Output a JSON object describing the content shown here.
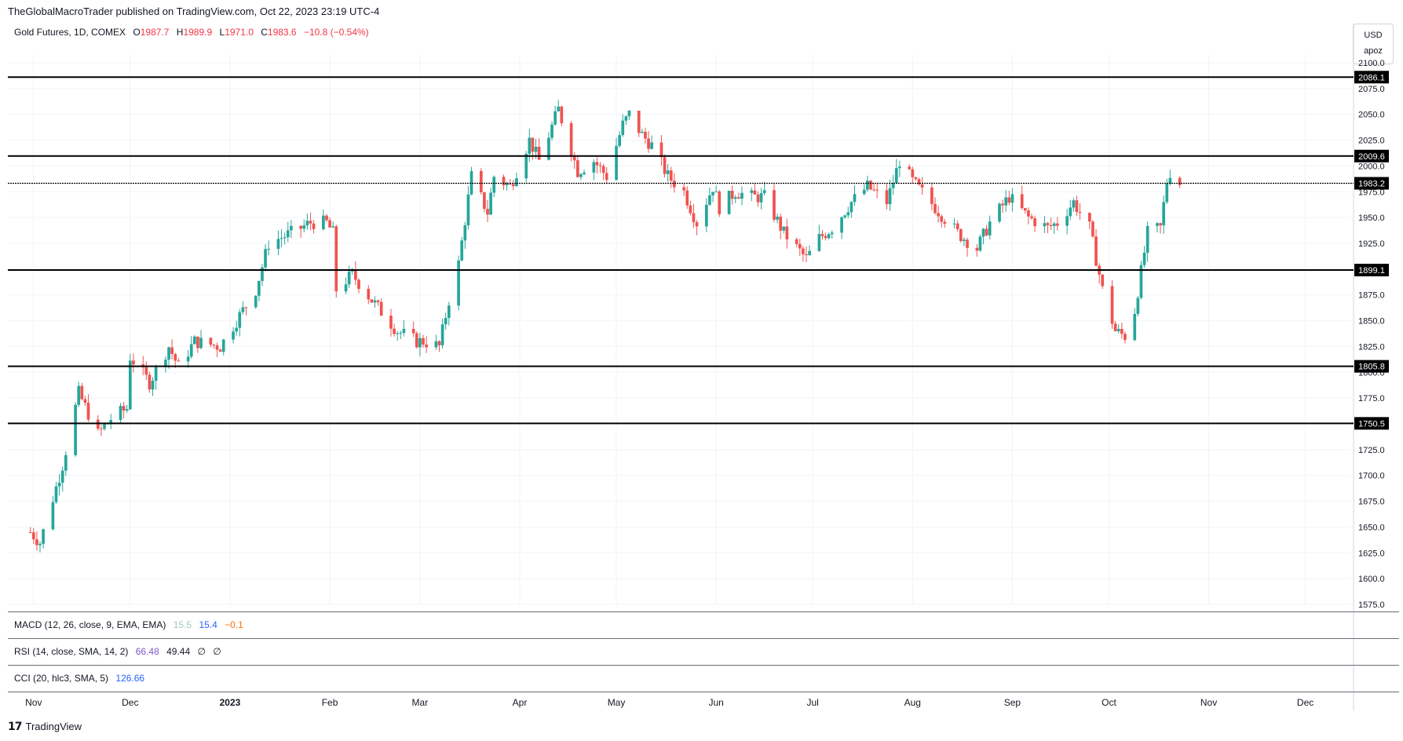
{
  "header": {
    "publisher": "TheGlobalMacroTrader published on TradingView.com, Oct 22, 2023 23:19 UTC-4"
  },
  "legend": {
    "symbol": "Gold Futures, 1D, COMEX",
    "o_label": "O",
    "o": "1987.7",
    "h_label": "H",
    "h": "1989.9",
    "l_label": "L",
    "l": "1971.0",
    "c_label": "C",
    "c": "1983.6",
    "change": "−10.8 (−0.54%)"
  },
  "scale_box": {
    "currency": "USD",
    "unit": "apoz"
  },
  "indicators": {
    "macd": {
      "label": "MACD (12, 26, close, 9, EMA, EMA)",
      "v1": "15.5",
      "v2": "15.4",
      "v3": "−0.1"
    },
    "rsi": {
      "label": "RSI (14, close, SMA, 14, 2)",
      "v1": "66.48",
      "v2": "49.44",
      "v3": "∅",
      "v4": "∅"
    },
    "cci": {
      "label": "CCI (20, hlc3, SMA, 5)",
      "v1": "126.66"
    }
  },
  "footer": {
    "brand": "TradingView"
  },
  "colors": {
    "up": "#26a69a",
    "down": "#ef5350",
    "level_line": "#000000",
    "grid": "#f0f3fa"
  },
  "chart_data": {
    "type": "candlestick",
    "title": "Gold Futures, 1D, COMEX",
    "ylim": [
      1575,
      2100
    ],
    "y_ticks": [
      2100,
      2075,
      2050,
      2025,
      2000,
      1975,
      1950,
      1925,
      1900,
      1875,
      1850,
      1825,
      1800,
      1775,
      1750,
      1725,
      1700,
      1675,
      1650,
      1625,
      1600,
      1575
    ],
    "y_tick_labels": [
      "2100.0",
      "2075.0",
      "2050.0",
      "2025.0",
      "2000.0",
      "1975.0",
      "1950.0",
      "1925.0",
      "1900.0",
      "1875.0",
      "1850.0",
      "1825.0",
      "1800.0",
      "1775.0",
      "1750.0",
      "1725.0",
      "1700.0",
      "1675.0",
      "1650.0",
      "1625.0",
      "1600.0",
      "1575.0"
    ],
    "x_labels": [
      "Nov",
      "Dec",
      "2023",
      "Feb",
      "Mar",
      "Apr",
      "May",
      "Jun",
      "Jul",
      "Aug",
      "Sep",
      "Oct",
      "Nov",
      "Dec"
    ],
    "x_label_dates": [
      "2022-11-01",
      "2022-12-01",
      "2023-01-01",
      "2023-02-01",
      "2023-03-01",
      "2023-04-01",
      "2023-05-01",
      "2023-06-01",
      "2023-07-01",
      "2023-08-01",
      "2023-09-01",
      "2023-10-01",
      "2023-11-01",
      "2023-12-01"
    ],
    "horizontal_levels": [
      {
        "value": 2086.1,
        "label": "2086.1"
      },
      {
        "value": 2009.6,
        "label": "2009.6"
      },
      {
        "value": 1983.2,
        "label": "1983.2",
        "style": "dotted"
      },
      {
        "value": 1899.1,
        "label": "1899.1"
      },
      {
        "value": 1805.8,
        "label": "1805.8"
      },
      {
        "value": 1750.5,
        "label": "1750.5"
      }
    ],
    "grid": true,
    "price_path": [
      [
        "2022-10-31",
        1645
      ],
      [
        "2022-11-03",
        1635
      ],
      [
        "2022-11-10",
        1710
      ],
      [
        "2022-11-15",
        1780
      ],
      [
        "2022-11-21",
        1740
      ],
      [
        "2022-11-25",
        1755
      ],
      [
        "2022-11-30",
        1765
      ],
      [
        "2022-12-01",
        1815
      ],
      [
        "2022-12-07",
        1790
      ],
      [
        "2022-12-13",
        1825
      ],
      [
        "2022-12-16",
        1805
      ],
      [
        "2022-12-21",
        1830
      ],
      [
        "2022-12-29",
        1825
      ],
      [
        "2023-01-05",
        1860
      ],
      [
        "2023-01-09",
        1880
      ],
      [
        "2023-01-13",
        1925
      ],
      [
        "2023-01-20",
        1935
      ],
      [
        "2023-01-26",
        1945
      ],
      [
        "2023-01-31",
        1945
      ],
      [
        "2023-02-02",
        1935
      ],
      [
        "2023-02-03",
        1880
      ],
      [
        "2023-02-08",
        1895
      ],
      [
        "2023-02-14",
        1870
      ],
      [
        "2023-02-22",
        1840
      ],
      [
        "2023-02-28",
        1830
      ],
      [
        "2023-03-02",
        1830
      ],
      [
        "2023-03-07",
        1825
      ],
      [
        "2023-03-10",
        1870
      ],
      [
        "2023-03-13",
        1905
      ],
      [
        "2023-03-17",
        1990
      ],
      [
        "2023-03-22",
        1955
      ],
      [
        "2023-03-24",
        1990
      ],
      [
        "2023-03-29",
        1980
      ],
      [
        "2023-04-04",
        2025
      ],
      [
        "2023-04-07",
        2005
      ],
      [
        "2023-04-13",
        2055
      ],
      [
        "2023-04-19",
        1995
      ],
      [
        "2023-04-24",
        2005
      ],
      [
        "2023-04-28",
        1990
      ],
      [
        "2023-05-03",
        2040
      ],
      [
        "2023-05-05",
        2050
      ],
      [
        "2023-05-09",
        2030
      ],
      [
        "2023-05-12",
        2020
      ],
      [
        "2023-05-17",
        1990
      ],
      [
        "2023-05-22",
        1975
      ],
      [
        "2023-05-26",
        1945
      ],
      [
        "2023-05-31",
        1980
      ],
      [
        "2023-06-02",
        1960
      ],
      [
        "2023-06-07",
        1975
      ],
      [
        "2023-06-12",
        1970
      ],
      [
        "2023-06-16",
        1970
      ],
      [
        "2023-06-22",
        1935
      ],
      [
        "2023-06-29",
        1910
      ],
      [
        "2023-07-03",
        1930
      ],
      [
        "2023-07-07",
        1940
      ],
      [
        "2023-07-13",
        1965
      ],
      [
        "2023-07-18",
        1980
      ],
      [
        "2023-07-24",
        1965
      ],
      [
        "2023-07-28",
        2005
      ],
      [
        "2023-08-01",
        1985
      ],
      [
        "2023-08-08",
        1960
      ],
      [
        "2023-08-15",
        1935
      ],
      [
        "2023-08-21",
        1920
      ],
      [
        "2023-08-25",
        1945
      ],
      [
        "2023-08-31",
        1970
      ],
      [
        "2023-09-06",
        1950
      ],
      [
        "2023-09-12",
        1940
      ],
      [
        "2023-09-15",
        1945
      ],
      [
        "2023-09-20",
        1965
      ],
      [
        "2023-09-25",
        1940
      ],
      [
        "2023-09-29",
        1880
      ],
      [
        "2023-10-03",
        1840
      ],
      [
        "2023-10-06",
        1835
      ],
      [
        "2023-10-09",
        1860
      ],
      [
        "2023-10-13",
        1935
      ],
      [
        "2023-10-17",
        1940
      ],
      [
        "2023-10-19",
        1985
      ],
      [
        "2023-10-20",
        1994
      ],
      [
        "2023-10-23",
        1983.6
      ]
    ]
  }
}
